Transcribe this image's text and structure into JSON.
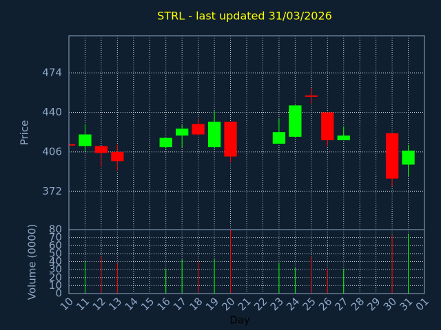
{
  "chart_data": {
    "type": "candlestick",
    "title": "STRL - last updated 31/03/2026",
    "xlabel": "Day",
    "ylabel": "Price",
    "volume_label": "Volume (0000)",
    "categories": [
      "10",
      "11",
      "12",
      "13",
      "14",
      "15",
      "16",
      "17",
      "18",
      "19",
      "20",
      "21",
      "22",
      "23",
      "24",
      "25",
      "26",
      "27",
      "28",
      "29",
      "30",
      "31",
      "01"
    ],
    "open": [
      412,
      411,
      411,
      406,
      null,
      null,
      410,
      420,
      430,
      410,
      432,
      null,
      null,
      413,
      419,
      454,
      440,
      416,
      null,
      null,
      422,
      395,
      null
    ],
    "high": [
      412,
      430,
      411,
      412,
      null,
      null,
      418,
      429,
      435,
      441,
      432,
      null,
      null,
      435,
      446,
      461,
      440,
      428,
      null,
      null,
      422,
      412,
      null
    ],
    "low": [
      412,
      406,
      393,
      390,
      null,
      null,
      409,
      410,
      420,
      409,
      397,
      null,
      null,
      413,
      419,
      447,
      411,
      416,
      null,
      null,
      376,
      385,
      null
    ],
    "close": [
      412,
      421,
      405,
      398,
      null,
      null,
      418,
      426,
      421,
      432,
      402,
      null,
      null,
      423,
      446,
      453,
      416,
      420,
      null,
      null,
      383,
      407,
      null
    ],
    "volume": [
      null,
      40,
      46,
      38,
      null,
      null,
      31,
      43,
      40,
      43,
      80,
      null,
      null,
      39,
      32,
      46,
      31,
      31,
      null,
      null,
      73,
      74,
      null
    ],
    "ylim": [
      339,
      506
    ],
    "yticks": [
      372,
      406,
      440,
      474
    ],
    "volume_ylim": [
      0,
      80
    ],
    "volume_yticks": [
      0,
      10,
      20,
      30,
      40,
      50,
      60,
      70,
      80
    ],
    "up_color": "#00ff00",
    "down_color": "#ff0000",
    "grid": true
  }
}
